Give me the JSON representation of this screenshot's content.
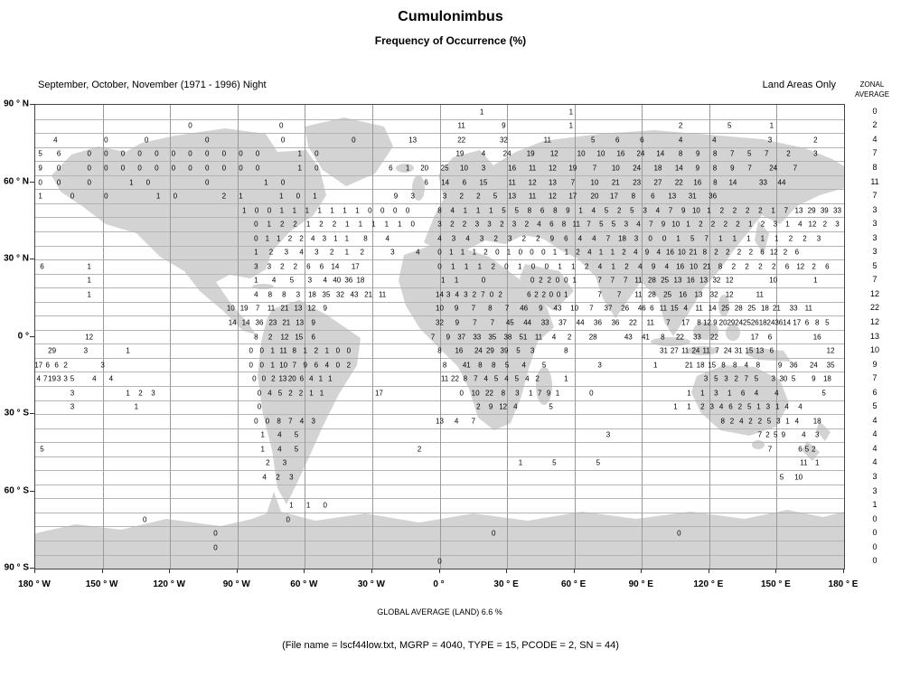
{
  "title": "Cumulonimbus",
  "subtitle": "Frequency of Occurrence (%)",
  "header": {
    "season": "September, October, November (1971 - 1996) Night",
    "coverage": "Land Areas Only",
    "zonal_line1": "ZONAL",
    "zonal_line2": "AVERAGE"
  },
  "footer": {
    "global_average": "GLOBAL AVERAGE (LAND)   6.6 %",
    "file_info": "(File name = lscf44low.txt, MGRP = 4040, TYPE = 15, PCODE = 2, SN = 44)"
  },
  "chart_data": {
    "type": "heatmap",
    "title": "Cumulonimbus",
    "subtitle": "Frequency of Occurrence (%)",
    "season": "September, October, November (1971 - 1996) Night",
    "coverage": "Land Areas Only",
    "units": "%",
    "global_average_land_pct": 6.6,
    "lat_range": [
      90,
      -90
    ],
    "lon_range": [
      -180,
      180
    ],
    "n_rows": 33,
    "n_cols": 48,
    "grid_note": "seg format [colStart,colEnd,\"values\"]; columns 0-48 span 180W-180E, rows 0-32 span 90N-90S; blank cells = no data (ocean)",
    "lat_labels": [
      "90 ° N",
      "60 ° N",
      "30 ° N",
      "0 °",
      "30 ° S",
      "60 ° S",
      "90 ° S"
    ],
    "lon_labels": [
      "180 ° W",
      "150 ° W",
      "120 ° W",
      "90 ° W",
      "60 ° W",
      "30 ° W",
      "0 °",
      "30 ° E",
      "60 ° E",
      "90 ° E",
      "120 ° E",
      "150 ° E",
      "180 ° E"
    ],
    "zonal_averages": [
      "0",
      "2",
      "4",
      "7",
      "8",
      "11",
      "7",
      "3",
      "3",
      "3",
      "3",
      "5",
      "7",
      "12",
      "22",
      "12",
      "13",
      "10",
      "9",
      "7",
      "6",
      "5",
      "4",
      "4",
      "4",
      "4",
      "3",
      "3",
      "1",
      "0",
      "0",
      "0",
      "0"
    ],
    "grid_rows": [
      {
        "r": 0,
        "segs": [
          [
            26.5,
            26.5,
            "1"
          ],
          [
            31.8,
            31.8,
            "1"
          ]
        ]
      },
      {
        "r": 1,
        "segs": [
          [
            9.2,
            9.2,
            "0"
          ],
          [
            14.6,
            14.6,
            "0"
          ],
          [
            25.3,
            27.8,
            "11 9"
          ],
          [
            31.8,
            31.8,
            "1"
          ],
          [
            38.3,
            38.3,
            "2"
          ],
          [
            41.2,
            41.2,
            "5"
          ],
          [
            43.7,
            43.7,
            "1"
          ]
        ]
      },
      {
        "r": 2,
        "segs": [
          [
            1.2,
            1.2,
            "4"
          ],
          [
            4.2,
            4.2,
            "0"
          ],
          [
            6.6,
            6.6,
            "0"
          ],
          [
            10.2,
            10.2,
            "0"
          ],
          [
            14.7,
            14.7,
            "0"
          ],
          [
            18.9,
            18.9,
            "0"
          ],
          [
            22.4,
            22.4,
            "13"
          ],
          [
            25.3,
            27.8,
            "22 32"
          ],
          [
            30.4,
            30.4,
            "11"
          ],
          [
            33.1,
            36.0,
            "5 6 6"
          ],
          [
            38.3,
            38.3,
            "4"
          ],
          [
            40.3,
            40.3,
            "4"
          ],
          [
            43.6,
            43.6,
            "3"
          ],
          [
            46.3,
            46.3,
            "2"
          ]
        ]
      },
      {
        "r": 3,
        "segs": [
          [
            0.3,
            1.4,
            "5 6"
          ],
          [
            3.2,
            13.2,
            "0 0 0 0 0 0 0 0 0 0 0"
          ],
          [
            15.7,
            16.7,
            "1 0"
          ],
          [
            25.2,
            30.8,
            "19 4 24 19 12"
          ],
          [
            32.4,
            37.1,
            "10 10 16 24 14"
          ],
          [
            38.3,
            43.4,
            "8 9 8 7 5 7"
          ],
          [
            44.7,
            46.3,
            "2 3"
          ]
        ]
      },
      {
        "r": 4,
        "segs": [
          [
            0.3,
            1.4,
            "9 0"
          ],
          [
            3.2,
            13.2,
            "0 0 0 0 0 0 0 0 0 0 0"
          ],
          [
            15.7,
            16.7,
            "1 0"
          ],
          [
            21.1,
            23.1,
            "6 1 20"
          ],
          [
            24.3,
            26.6,
            "25 10 3"
          ],
          [
            28.3,
            31.9,
            "16 11 12 19"
          ],
          [
            33.2,
            38.2,
            "7 10 24 18 14"
          ],
          [
            39.3,
            42.4,
            "9 8 9 7"
          ],
          [
            43.8,
            45.1,
            "24 7"
          ]
        ]
      },
      {
        "r": 5,
        "segs": [
          [
            0.3,
            1.4,
            "0 0"
          ],
          [
            3.2,
            3.2,
            "0"
          ],
          [
            5.7,
            6.7,
            "1 0"
          ],
          [
            10.2,
            10.2,
            "0"
          ],
          [
            13.7,
            14.7,
            "1 0"
          ],
          [
            23.2,
            26.6,
            "6 14 6 15"
          ],
          [
            28.3,
            31.9,
            "11 12 13 7"
          ],
          [
            33.2,
            38.2,
            "10 21 23 27 22"
          ],
          [
            39.3,
            41.4,
            "16 8 14"
          ],
          [
            43.2,
            44.3,
            "33 44"
          ]
        ]
      },
      {
        "r": 6,
        "segs": [
          [
            0.3,
            0.3,
            "1"
          ],
          [
            2.2,
            2.2,
            "0"
          ],
          [
            4.2,
            4.2,
            "0"
          ],
          [
            7.3,
            8.3,
            "1 0"
          ],
          [
            11.2,
            12.2,
            "2 1"
          ],
          [
            14.6,
            16.6,
            "1 0 1"
          ],
          [
            21.4,
            22.4,
            "9 3"
          ],
          [
            24.3,
            27.3,
            "3 2 2 5"
          ],
          [
            28.3,
            31.9,
            "13 11 12 17"
          ],
          [
            33.2,
            37.8,
            "20 17 8 6 13"
          ],
          [
            39.0,
            40.2,
            "31 36"
          ]
        ]
      },
      {
        "r": 7,
        "segs": [
          [
            12.4,
            22.1,
            "1 0 0 1 1 1 1 1 1 1 0 0 0 0"
          ],
          [
            24.0,
            47.6,
            "8 4 1 1 1 5 5 8 6 8 9 1 4 5 2 5 3 4 7 9 10 1 2 2 2 2 1 7 13 29 39 33"
          ]
        ]
      },
      {
        "r": 8,
        "segs": [
          [
            13.1,
            22.4,
            "0 1 2 2 1 2 2 1 1 1 1 1 0"
          ],
          [
            24.0,
            47.6,
            "3 2 2 3 3 2 3 2 4 6 8 11 7 5 5 3 4 7 9 10 1 2 2 2 2 1 2 3 1 4 12 2 3"
          ]
        ]
      },
      {
        "r": 9,
        "segs": [
          [
            13.1,
            18.5,
            "0 1 1 2 2 4 3 1 1"
          ],
          [
            19.6,
            20.9,
            "8 4"
          ],
          [
            24.0,
            46.5,
            "4 3 4 3 2 3 2 2 9 6 4 4 7 18 3 0 0 1 5 7 1 1 1 1 1 2 2 3"
          ]
        ]
      },
      {
        "r": 10,
        "segs": [
          [
            13.1,
            19.4,
            "1 2 3 4 3 2 1 2"
          ],
          [
            21.2,
            21.2,
            "3"
          ],
          [
            22.7,
            22.7,
            "4"
          ],
          [
            24.0,
            45.2,
            "0 1 1 1 2 0 1 0 0 0 1 1 2 4 1 1 2 4 9 4 16 10 21 8 2 2 2 2 6 12 2 6"
          ]
        ]
      },
      {
        "r": 11,
        "segs": [
          [
            0.4,
            0.4,
            "6"
          ],
          [
            3.2,
            3.2,
            "1"
          ],
          [
            13.1,
            17.0,
            "3 3 2 2 6 6"
          ],
          [
            17.8,
            19.0,
            "14 17"
          ],
          [
            24.0,
            47.0,
            "0 1 1 1 2 0 1 0 0 1 1 2 4 1 2 4 9 4 16 10 21 8 2 2 2 2 6 12 2 6"
          ]
        ]
      },
      {
        "r": 12,
        "segs": [
          [
            3.2,
            3.2,
            "1"
          ],
          [
            13.1,
            16.3,
            "1 4 5 3"
          ],
          [
            17.2,
            19.3,
            "4 40 36 18"
          ],
          [
            24.2,
            25.0,
            "1 1"
          ],
          [
            26.6,
            26.6,
            "0"
          ],
          [
            29.5,
            32.0,
            "0 2 2 0 0 1"
          ],
          [
            33.5,
            35.8,
            "7 7 7 11"
          ],
          [
            36.6,
            41.2,
            "28 25 13 16 13 32 12"
          ],
          [
            43.8,
            43.8,
            "10"
          ],
          [
            46.3,
            46.3,
            "1"
          ]
        ]
      },
      {
        "r": 13,
        "segs": [
          [
            3.2,
            3.2,
            "1"
          ],
          [
            13.1,
            20.6,
            "4 8 8 3 18 35 32 43 21 11"
          ],
          [
            24.0,
            27.6,
            "14 3 4 3 2 7 0 2"
          ],
          [
            29.3,
            31.5,
            "6 2 2 0 0 1"
          ],
          [
            33.5,
            35.8,
            "7 7 11"
          ],
          [
            36.6,
            41.2,
            "28 25 16 13 32 12"
          ],
          [
            43.0,
            43.0,
            "11"
          ]
        ]
      },
      {
        "r": 14,
        "segs": [
          [
            11.6,
            16.4,
            "10 19 7 11 21 13 12"
          ],
          [
            17.2,
            17.2,
            "9"
          ],
          [
            24.0,
            36.0,
            "10 9 7 8 7 46 9 43 10 7 37 26 46"
          ],
          [
            36.6,
            38.6,
            "6 11 15 4"
          ],
          [
            39.4,
            43.3,
            "11 14 25 28 25 18"
          ],
          [
            44.0,
            45.0,
            "21 33"
          ],
          [
            45.9,
            45.9,
            "11"
          ]
        ]
      },
      {
        "r": 15,
        "segs": [
          [
            11.7,
            16.5,
            "14 14 36 23 21 13 9"
          ],
          [
            24.0,
            38.6,
            "32 9 7 7 45 44 33 37 44 36 36 22 11 7 17"
          ],
          [
            39.4,
            44.6,
            "8 12 9 20 29 24 25 26 18 24 36 14"
          ],
          [
            45.2,
            45.8,
            "17 6"
          ],
          [
            46.4,
            47.0,
            "8 5"
          ]
        ]
      },
      {
        "r": 16,
        "segs": [
          [
            3.2,
            3.2,
            "12"
          ],
          [
            13.1,
            16.5,
            "8 2 12 15 6"
          ],
          [
            23.6,
            24.5,
            "7 9"
          ],
          [
            25.3,
            31.7,
            "37 33 35 38 51 11 4 2"
          ],
          [
            33.1,
            33.1,
            "28"
          ],
          [
            35.2,
            40.3,
            "43 41 8 22 33 22"
          ],
          [
            42.7,
            43.6,
            "17 6"
          ],
          [
            46.4,
            46.4,
            "16"
          ]
        ]
      },
      {
        "r": 17,
        "segs": [
          [
            1.0,
            1.0,
            "29"
          ],
          [
            3.0,
            3.0,
            "3"
          ],
          [
            5.5,
            5.5,
            "1"
          ],
          [
            12.8,
            18.6,
            "0 0 1 11 8 1 2 1 0 0"
          ],
          [
            24.0,
            26.3,
            "8 16 24"
          ],
          [
            27.0,
            29.5,
            "29 39 5 3"
          ],
          [
            31.5,
            31.5,
            "8"
          ],
          [
            37.3,
            43.0,
            "31 27 11 24 11 7 24 31 15 13"
          ],
          [
            43.7,
            43.7,
            "6"
          ],
          [
            47.2,
            47.2,
            "12"
          ]
        ]
      },
      {
        "r": 18,
        "segs": [
          [
            0.2,
            1.8,
            "17 6 6 2"
          ],
          [
            4.0,
            4.0,
            "3"
          ],
          [
            12.8,
            18.6,
            "0 0 1 10 7 9 6 4 0 2"
          ],
          [
            24.3,
            24.3,
            "8"
          ],
          [
            25.6,
            28.0,
            "41 8 8 5"
          ],
          [
            29.0,
            30.2,
            "4 5"
          ],
          [
            33.5,
            33.5,
            "3"
          ],
          [
            36.8,
            36.8,
            "1"
          ],
          [
            38.8,
            42.2,
            "21 18 15 8 8 4"
          ],
          [
            42.9,
            44.2,
            "8 9"
          ],
          [
            45.0,
            46.2,
            "36 24"
          ],
          [
            47.2,
            47.2,
            "35"
          ]
        ]
      },
      {
        "r": 19,
        "segs": [
          [
            0.2,
            2.2,
            "4 7 19 3 3 5"
          ],
          [
            3.5,
            4.5,
            "4 4"
          ],
          [
            13.0,
            17.5,
            "0 0 2 13 20 6 4 1 1"
          ],
          [
            24.3,
            29.8,
            "11 22 8 7 4 5 4 5 4 2"
          ],
          [
            31.5,
            31.5,
            "1"
          ],
          [
            39.8,
            42.8,
            "3 5 3 2 7 5"
          ],
          [
            43.8,
            45.0,
            "3 30 5"
          ],
          [
            46.2,
            47.0,
            "9 18"
          ]
        ]
      },
      {
        "r": 20,
        "segs": [
          [
            2.2,
            2.2,
            "3"
          ],
          [
            5.5,
            7.0,
            "1 2 3"
          ],
          [
            13.3,
            17.0,
            "0 4 5 2 2 1 1"
          ],
          [
            20.4,
            20.4,
            "17"
          ],
          [
            25.3,
            28.6,
            "0 10 22 8 3"
          ],
          [
            29.4,
            31.0,
            "1 7 9 1"
          ],
          [
            33.0,
            33.0,
            "0"
          ],
          [
            38.8,
            39.6,
            "1 1"
          ],
          [
            40.4,
            42.8,
            "3 1 6 4"
          ],
          [
            44.0,
            44.0,
            "4"
          ],
          [
            46.8,
            46.8,
            "5"
          ]
        ]
      },
      {
        "r": 21,
        "segs": [
          [
            2.2,
            2.2,
            "3"
          ],
          [
            6.0,
            6.0,
            "1"
          ],
          [
            13.3,
            13.3,
            "0"
          ],
          [
            26.3,
            28.5,
            "2 9 12 4"
          ],
          [
            30.6,
            30.6,
            "5"
          ],
          [
            38.0,
            38.8,
            "1 1"
          ],
          [
            39.6,
            44.6,
            "2 3 4 6 2 5 1 3 1 4"
          ],
          [
            45.4,
            45.4,
            "4"
          ]
        ]
      },
      {
        "r": 22,
        "segs": [
          [
            13.1,
            16.5,
            "0 0 8 7 4 3"
          ],
          [
            24.0,
            26.0,
            "13 4 7"
          ],
          [
            40.8,
            45.2,
            "8 2 4 2 2 5 3 1 4"
          ],
          [
            46.4,
            46.4,
            "18"
          ]
        ]
      },
      {
        "r": 23,
        "segs": [
          [
            13.5,
            15.5,
            "1 4 5"
          ],
          [
            34.0,
            34.0,
            "3"
          ],
          [
            43.0,
            44.4,
            "7 2 5 9"
          ],
          [
            45.6,
            46.4,
            "4 3"
          ]
        ]
      },
      {
        "r": 24,
        "segs": [
          [
            0.4,
            0.4,
            "5"
          ],
          [
            13.5,
            15.5,
            "1 4 5"
          ],
          [
            22.8,
            22.8,
            "2"
          ],
          [
            43.6,
            43.6,
            "7"
          ],
          [
            45.4,
            46.2,
            "6 5 2"
          ]
        ]
      },
      {
        "r": 25,
        "segs": [
          [
            13.8,
            14.8,
            "2 3"
          ],
          [
            28.8,
            28.8,
            "1"
          ],
          [
            30.8,
            30.8,
            "5"
          ],
          [
            33.4,
            33.4,
            "5"
          ],
          [
            45.6,
            46.4,
            "11 1"
          ]
        ]
      },
      {
        "r": 26,
        "segs": [
          [
            13.6,
            15.2,
            "4 2 3"
          ],
          [
            44.3,
            45.3,
            "5 10"
          ]
        ]
      },
      {
        "r": 28,
        "segs": [
          [
            15.2,
            17.2,
            "1 1 0"
          ]
        ]
      },
      {
        "r": 29,
        "segs": [
          [
            6.5,
            6.5,
            "0"
          ],
          [
            15.0,
            15.0,
            "0"
          ]
        ]
      },
      {
        "r": 30,
        "segs": [
          [
            10.7,
            10.7,
            "0"
          ],
          [
            27.2,
            27.2,
            "0"
          ],
          [
            38.2,
            38.2,
            "0"
          ]
        ]
      },
      {
        "r": 31,
        "segs": [
          [
            10.7,
            10.7,
            "0"
          ]
        ]
      },
      {
        "r": 32,
        "segs": [
          [
            24.0,
            24.0,
            "0"
          ]
        ]
      }
    ],
    "colors": {
      "land": "#d3d3d3",
      "ocean": "#ffffff",
      "grid": "#a8a8a8",
      "border": "#444444",
      "text": "#000000"
    }
  }
}
